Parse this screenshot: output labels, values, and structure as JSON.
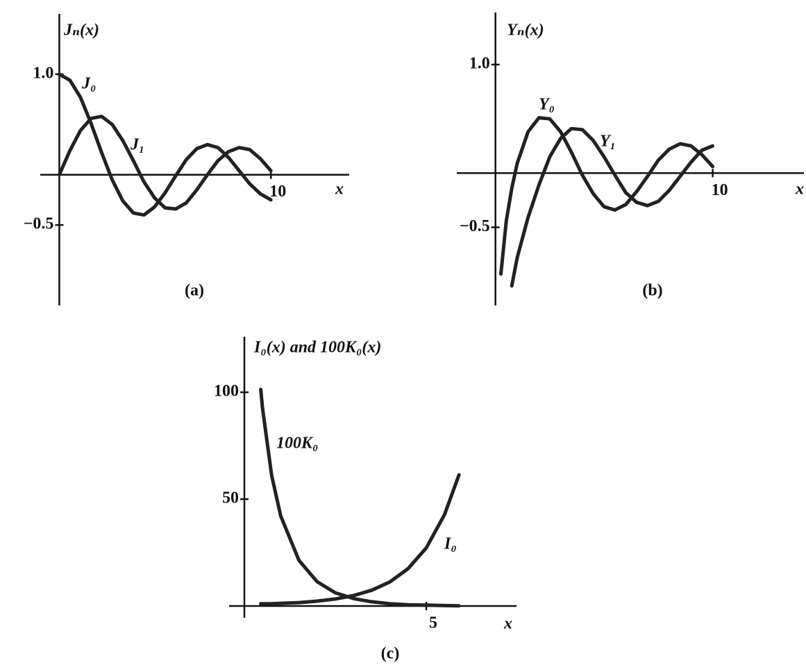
{
  "chart_data": [
    {
      "type": "line",
      "title": "Jₙ(x)",
      "x_label": "x",
      "caption": "(a)",
      "x": [
        0,
        0.5,
        1,
        1.5,
        2,
        2.5,
        3,
        3.5,
        4,
        4.5,
        5,
        5.5,
        6,
        6.5,
        7,
        7.5,
        8,
        8.5,
        9,
        9.5,
        10
      ],
      "series": [
        {
          "name": "J₀",
          "color": "#222222",
          "values": [
            1,
            0.94,
            0.77,
            0.51,
            0.22,
            -0.05,
            -0.26,
            -0.38,
            -0.4,
            -0.32,
            -0.18,
            -0.01,
            0.15,
            0.26,
            0.3,
            0.27,
            0.17,
            0.04,
            -0.09,
            -0.19,
            -0.25
          ]
        },
        {
          "name": "J₁",
          "color": "#222222",
          "values": [
            0,
            0.24,
            0.44,
            0.56,
            0.58,
            0.5,
            0.34,
            0.14,
            -0.07,
            -0.23,
            -0.33,
            -0.34,
            -0.28,
            -0.15,
            0,
            0.14,
            0.23,
            0.27,
            0.25,
            0.16,
            0.04
          ]
        }
      ],
      "xlim": [
        -0.9,
        13.7
      ],
      "ylim": [
        -1.3,
        1.6
      ],
      "xticks": [
        10
      ],
      "yticks": [
        {
          "value": -0.5,
          "label": "−0.5"
        },
        {
          "value": 1,
          "label": "1.0"
        }
      ],
      "grid": false
    },
    {
      "type": "line",
      "title": "Yₙ(x)",
      "x_label": "x",
      "caption": "(b)",
      "x": [
        0.25,
        0.5,
        0.75,
        1,
        1.5,
        2,
        2.5,
        3,
        3.5,
        4,
        4.5,
        5,
        5.5,
        6,
        6.5,
        7,
        7.5,
        8,
        8.5,
        9,
        9.5,
        10
      ],
      "series": [
        {
          "name": "Y₀",
          "color": "#222222",
          "values": [
            -0.93,
            -0.44,
            -0.14,
            0.09,
            0.38,
            0.51,
            0.5,
            0.38,
            0.19,
            -0.02,
            -0.19,
            -0.31,
            -0.34,
            -0.29,
            -0.17,
            -0.03,
            0.12,
            0.22,
            0.27,
            0.25,
            0.17,
            0.06
          ]
        },
        {
          "name": "Y₁",
          "color": "#222222",
          "values": [
            null,
            null,
            -1.04,
            -0.78,
            -0.41,
            -0.11,
            0.15,
            0.32,
            0.41,
            0.4,
            0.3,
            0.15,
            -0.02,
            -0.18,
            -0.27,
            -0.3,
            -0.26,
            -0.16,
            -0.03,
            0.1,
            0.21,
            0.25
          ]
        }
      ],
      "xlim": [
        -1.78,
        14.2
      ],
      "ylim": [
        -1.22,
        1.48
      ],
      "xticks": [
        10
      ],
      "yticks": [
        {
          "value": -0.5,
          "label": "−0.5"
        },
        {
          "value": 1,
          "label": "1.0"
        }
      ],
      "grid": false
    },
    {
      "type": "line",
      "title": "I₀(x) and 100K₀(x)",
      "x_label": "x",
      "caption": "(c)",
      "x": [
        0.45,
        0.5,
        0.75,
        1,
        1.5,
        2,
        2.5,
        3,
        3.5,
        4,
        4.5,
        5,
        5.5,
        5.9
      ],
      "series": [
        {
          "name": "100K₀",
          "color": "#222222",
          "values": [
            101.3,
            92.4,
            61.1,
            42.1,
            21.4,
            11.4,
            6.2,
            3.5,
            2,
            1.1,
            0.6,
            0.4,
            0.2,
            0.1
          ]
        },
        {
          "name": "I₀",
          "color": "#222222",
          "values": [
            1.1,
            1.1,
            1.1,
            1.3,
            1.6,
            2.3,
            3.3,
            4.9,
            7.4,
            11.3,
            17.5,
            27.2,
            42.7,
            61.4
          ]
        }
      ],
      "xlim": [
        -0.42,
        7.48
      ],
      "ylim": [
        -5.5,
        126
      ],
      "xticks": [
        5
      ],
      "yticks": [
        50,
        100
      ],
      "grid": false
    }
  ]
}
